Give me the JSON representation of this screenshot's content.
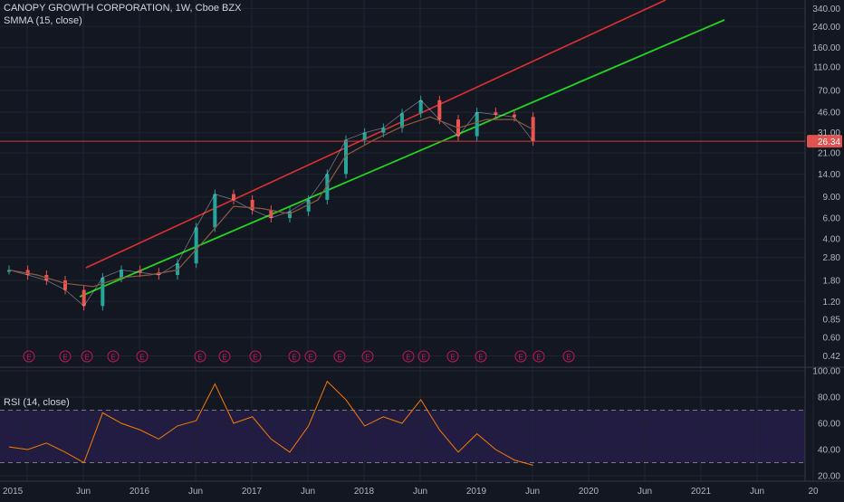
{
  "header": {
    "symbol_title": "CANOPY GROWTH CORPORATION, 1W, Cboe BZX",
    "smma_label": "SMMA (15, close)",
    "rsi_label": "RSI (14, close)"
  },
  "colors": {
    "background": "#131722",
    "grid": "#1f2433",
    "candle_up": "#26a69a",
    "candle_down": "#ef5350",
    "smma": "#8d5a3f",
    "upper_trendline": "#e03030",
    "lower_trendline": "#22d422",
    "price_line": "#c93b3b",
    "price_badge": "#e0534f",
    "rsi_line": "#f57c00",
    "rsi_band": "#2a1f4d",
    "earnings_marker": "#c2185b"
  },
  "price_axis": {
    "scale": "log",
    "ticks": [
      "340.00",
      "240.00",
      "160.00",
      "110.00",
      "70.00",
      "46.00",
      "31.00",
      "21.00",
      "14.00",
      "9.00",
      "6.00",
      "4.00",
      "2.80",
      "1.80",
      "1.20",
      "0.85",
      "0.60",
      "0.42"
    ],
    "last_price": "26.34"
  },
  "rsi_axis": {
    "ticks": [
      "100.00",
      "80.00",
      "60.00",
      "40.00",
      "20.00"
    ],
    "upper_band": 70,
    "lower_band": 30
  },
  "time_axis": {
    "labels": [
      "2015",
      "Jun",
      "2016",
      "Jun",
      "2017",
      "Jun",
      "2018",
      "Jun",
      "2019",
      "Jun",
      "2020",
      "Jun",
      "2021",
      "Jun",
      "20"
    ]
  },
  "earnings_marker_label": "E",
  "earnings_count": 20,
  "chart_data": {
    "type": "line",
    "title": "CANOPY GROWTH CORPORATION, 1W, Cboe BZX",
    "xlabel": "",
    "ylabel": "",
    "y_scale": "log",
    "ylim": [
      0.35,
      400
    ],
    "x_range": [
      "2015-01",
      "2020-12"
    ],
    "grid": true,
    "series": [
      {
        "name": "",
        "x": [
          "2015-01",
          "2015-03",
          "2015-05",
          "2015-07",
          "2015-09",
          "2015-11",
          "2016-01",
          "2016-03",
          "2016-05",
          "2016-07",
          "2016-09",
          "2016-11",
          "2017-01",
          "2017-03",
          "2017-05",
          "2017-07",
          "2017-09",
          "2017-11",
          "2018-01",
          "2018-03",
          "2018-05",
          "2018-07",
          "2018-09",
          "2018-11",
          "2019-01",
          "2019-03",
          "2019-05",
          "2019-07",
          "2019-09"
        ],
        "values": [
          2.2,
          2.0,
          1.8,
          1.5,
          1.1,
          1.9,
          2.2,
          2.1,
          2.0,
          2.5,
          5.0,
          9.5,
          8.5,
          7.0,
          6.0,
          6.8,
          8.5,
          14.0,
          27.0,
          31.0,
          34.0,
          45.0,
          58.0,
          40.0,
          29.0,
          46.0,
          44.0,
          42.0,
          26.34
        ]
      },
      {
        "name": "SMMA (15, close)",
        "x": [
          "2015-01",
          "2015-04",
          "2015-07",
          "2015-10",
          "2016-01",
          "2016-04",
          "2016-07",
          "2016-10",
          "2017-01",
          "2017-04",
          "2017-07",
          "2017-10",
          "2018-01",
          "2018-04",
          "2018-07",
          "2018-10",
          "2019-01",
          "2019-04",
          "2019-07",
          "2019-09"
        ],
        "values": [
          2.2,
          2.0,
          1.7,
          1.6,
          1.9,
          2.0,
          2.2,
          4.0,
          7.5,
          7.2,
          6.5,
          8.5,
          20.0,
          27.0,
          35.0,
          42.0,
          34.0,
          40.0,
          40.0,
          33.0
        ]
      },
      {
        "name": "RSI (14, close)",
        "x": [
          "2015-01",
          "2015-03",
          "2015-05",
          "2015-07",
          "2015-09",
          "2015-11",
          "2016-01",
          "2016-03",
          "2016-05",
          "2016-07",
          "2016-09",
          "2016-11",
          "2017-01",
          "2017-03",
          "2017-05",
          "2017-07",
          "2017-09",
          "2017-11",
          "2018-01",
          "2018-03",
          "2018-05",
          "2018-07",
          "2018-09",
          "2018-11",
          "2019-01",
          "2019-03",
          "2019-05",
          "2019-07",
          "2019-09"
        ],
        "values": [
          42,
          40,
          45,
          38,
          30,
          68,
          60,
          55,
          48,
          58,
          62,
          90,
          60,
          65,
          48,
          38,
          58,
          92,
          78,
          58,
          65,
          60,
          78,
          55,
          38,
          52,
          40,
          32,
          28
        ]
      }
    ]
  }
}
